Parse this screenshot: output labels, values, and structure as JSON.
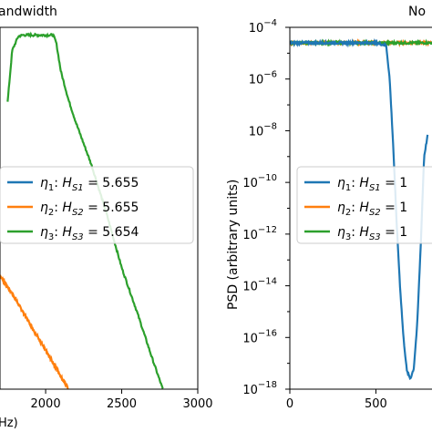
{
  "chart_data": [
    {
      "type": "line",
      "title": "andwidth",
      "xlabel": "Hz)",
      "ylabel": "",
      "log_y": true,
      "xlim": [
        1700,
        3000
      ],
      "ylim": [
        -18,
        -4
      ],
      "x_ticks": [
        "2000",
        "2500",
        "3000"
      ],
      "x_tick_values": [
        2000,
        2500,
        3000
      ],
      "legend_placement": "center-right",
      "series": [
        {
          "name": "η1: HS1 = 5.655",
          "legend": {
            "eta": "η",
            "eta_sub": "1",
            "h": ": H",
            "h_sub": "S1",
            "value": " = 5.655"
          },
          "color": "#1f77b4",
          "x": [],
          "y": []
        },
        {
          "name": "η2: HS2 = 5.655",
          "legend": {
            "eta": "η",
            "eta_sub": "2",
            "h": ": H",
            "h_sub": "S2",
            "value": " = 5.655"
          },
          "color": "#ff7f0e",
          "x": [
            1700,
            1780,
            1860,
            1940,
            2000,
            2060,
            2110,
            2150
          ],
          "y": [
            -13.6,
            -14.3,
            -15.1,
            -15.9,
            -16.5,
            -17.1,
            -17.6,
            -18.0
          ]
        },
        {
          "name": "η3: HS3 = 5.654",
          "legend": {
            "eta": "η",
            "eta_sub": "3",
            "h": ": H",
            "h_sub": "S3",
            "value": " = 5.654"
          },
          "color": "#2ca02c",
          "x": [
            1750,
            1780,
            1820,
            1850,
            1900,
            1950,
            2000,
            2050,
            2070,
            2100,
            2150,
            2200,
            2300,
            2400,
            2500,
            2600,
            2700,
            2770
          ],
          "y": [
            -6.9,
            -4.9,
            -4.35,
            -4.3,
            -4.3,
            -4.3,
            -4.3,
            -4.3,
            -4.6,
            -5.7,
            -6.8,
            -7.7,
            -9.3,
            -11.2,
            -13.3,
            -15.0,
            -16.8,
            -18.0
          ]
        }
      ]
    },
    {
      "type": "line",
      "title": "No",
      "xlabel": "",
      "ylabel": "PSD (arbitrary units)",
      "log_y": true,
      "xlim": [
        0,
        900
      ],
      "ylim": [
        -18,
        -4
      ],
      "x_ticks": [
        "0",
        "500"
      ],
      "x_tick_values": [
        0,
        500
      ],
      "y_ticks": [
        {
          "base": "10",
          "exp": "−4",
          "value": -4
        },
        {
          "base": "10",
          "exp": "−6",
          "value": -6
        },
        {
          "base": "10",
          "exp": "−8",
          "value": -8
        },
        {
          "base": "10",
          "exp": "−10",
          "value": -10
        },
        {
          "base": "10",
          "exp": "−12",
          "value": -12
        },
        {
          "base": "10",
          "exp": "−14",
          "value": -14
        },
        {
          "base": "10",
          "exp": "−16",
          "value": -16
        },
        {
          "base": "10",
          "exp": "−18",
          "value": -18
        }
      ],
      "legend_placement": "center-right",
      "series": [
        {
          "name": "η1: HS1 = 1",
          "legend": {
            "eta": "η",
            "eta_sub": "1",
            "h": ": H",
            "h_sub": "S1",
            "value": " = 1"
          },
          "color": "#1f77b4",
          "x": [
            0,
            500,
            560,
            580,
            600,
            620,
            640,
            660,
            680,
            700,
            720,
            740,
            760,
            780,
            800
          ],
          "y": [
            -4.6,
            -4.6,
            -4.7,
            -6.0,
            -8.5,
            -11.5,
            -14.0,
            -16.0,
            -17.3,
            -17.6,
            -17.2,
            -15.5,
            -12.5,
            -9.0,
            -8.2
          ]
        },
        {
          "name": "η2: HS2 = 1",
          "legend": {
            "eta": "η",
            "eta_sub": "2",
            "h": ": H",
            "h_sub": "S2",
            "value": " = 1"
          },
          "color": "#ff7f0e",
          "x": [
            0,
            900
          ],
          "y": [
            -4.6,
            -4.6
          ]
        },
        {
          "name": "η3: HS3 = 1",
          "legend": {
            "eta": "η",
            "eta_sub": "3",
            "h": ": H",
            "h_sub": "S3",
            "value": " = 1"
          },
          "color": "#2ca02c",
          "x": [
            0,
            900
          ],
          "y": [
            -4.6,
            -4.6
          ]
        }
      ]
    }
  ]
}
